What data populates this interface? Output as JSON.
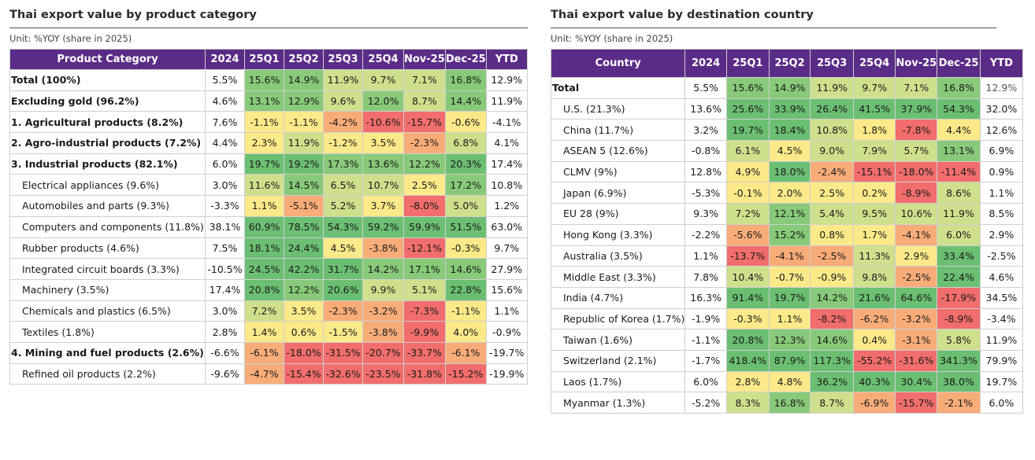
{
  "left": {
    "title": "Thai export value by product category",
    "unit": "Unit: %YOY (share in 2025)",
    "headers": [
      "Product Category",
      "2024",
      "25Q1",
      "25Q2",
      "25Q3",
      "25Q4",
      "Nov-25",
      "Dec-25",
      "YTD"
    ],
    "rows": [
      {
        "label": "Total (100%)",
        "style": "bold",
        "cells": [
          "5.5%",
          "15.6%",
          "14.9%",
          "11.9%",
          "9.7%",
          "7.1%",
          "16.8%",
          "12.9%"
        ]
      },
      {
        "label": "Excluding gold (96.2%)",
        "style": "bold",
        "cells": [
          "4.6%",
          "13.1%",
          "12.9%",
          "9.6%",
          "12.0%",
          "8.7%",
          "14.4%",
          "11.9%"
        ]
      },
      {
        "label": "1. Agricultural products (8.2%)",
        "style": "bold",
        "cells": [
          "7.6%",
          "-1.1%",
          "-1.1%",
          "-4.2%",
          "-10.6%",
          "-15.7%",
          "-0.6%",
          "-4.1%"
        ]
      },
      {
        "label": "2. Agro-industrial products (7.2%)",
        "style": "bold",
        "cells": [
          "4.4%",
          "2.3%",
          "11.9%",
          "-1.2%",
          "3.5%",
          "-2.3%",
          "6.8%",
          "4.1%"
        ]
      },
      {
        "label": "3. Industrial products (82.1%)",
        "style": "bold",
        "cells": [
          "6.0%",
          "19.7%",
          "19.2%",
          "17.3%",
          "13.6%",
          "12.2%",
          "20.3%",
          "17.4%"
        ]
      },
      {
        "label": "Electrical appliances (9.6%)",
        "style": "sub",
        "cells": [
          "3.0%",
          "11.6%",
          "14.5%",
          "6.5%",
          "10.7%",
          "2.5%",
          "17.2%",
          "10.8%"
        ]
      },
      {
        "label": "Automobiles and parts (9.3%)",
        "style": "sub",
        "cells": [
          "-3.3%",
          "1.1%",
          "-5.1%",
          "5.2%",
          "3.7%",
          "-8.0%",
          "5.0%",
          "1.2%"
        ]
      },
      {
        "label": "Computers and components (11.8%)",
        "style": "sub",
        "cells": [
          "38.1%",
          "60.9%",
          "78.5%",
          "54.3%",
          "59.2%",
          "59.9%",
          "51.5%",
          "63.0%"
        ]
      },
      {
        "label": "Rubber products (4.6%)",
        "style": "sub",
        "cells": [
          "7.5%",
          "18.1%",
          "24.4%",
          "4.5%",
          "-3.8%",
          "-12.1%",
          "-0.3%",
          "9.7%"
        ]
      },
      {
        "label": "Integrated circuit boards (3.3%)",
        "style": "sub",
        "cells": [
          "-10.5%",
          "24.5%",
          "42.2%",
          "31.7%",
          "14.2%",
          "17.1%",
          "14.6%",
          "27.9%"
        ]
      },
      {
        "label": "Machinery (3.5%)",
        "style": "sub",
        "cells": [
          "17.4%",
          "20.8%",
          "12.2%",
          "20.6%",
          "9.9%",
          "5.1%",
          "22.8%",
          "15.6%"
        ]
      },
      {
        "label": "Chemicals and plastics (6.5%)",
        "style": "sub",
        "cells": [
          "3.0%",
          "7.2%",
          "3.5%",
          "-2.3%",
          "-3.2%",
          "-7.3%",
          "-1.1%",
          "1.1%"
        ]
      },
      {
        "label": "Textiles (1.8%)",
        "style": "sub",
        "cells": [
          "2.8%",
          "1.4%",
          "0.6%",
          "-1.5%",
          "-3.8%",
          "-9.9%",
          "4.0%",
          "-0.9%"
        ]
      },
      {
        "label": "4. Mining and fuel products (2.6%)",
        "style": "bold",
        "cells": [
          "-6.6%",
          "-6.1%",
          "-18.0%",
          "-31.5%",
          "-20.7%",
          "-33.7%",
          "-6.1%",
          "-19.7%"
        ]
      },
      {
        "label": "Refined oil products (2.2%)",
        "style": "sub",
        "cells": [
          "-9.6%",
          "-4.7%",
          "-15.4%",
          "-32.6%",
          "-23.5%",
          "-31.8%",
          "-15.2%",
          "-19.9%"
        ]
      }
    ]
  },
  "right": {
    "title": "Thai export value by destination country",
    "unit": "Unit: %YOY (share in 2025)",
    "headers": [
      "Country",
      "2024",
      "25Q1",
      "25Q2",
      "25Q3",
      "25Q4",
      "Nov-25",
      "Dec-25",
      "YTD"
    ],
    "rows": [
      {
        "label": "Total",
        "style": "bold",
        "cells": [
          "5.5%",
          "15.6%",
          "14.9%",
          "11.9%",
          "9.7%",
          "7.1%",
          "16.8%",
          "12.9%"
        ]
      },
      {
        "label": "U.S. (21.3%)",
        "style": "sub",
        "cells": [
          "13.6%",
          "25.6%",
          "33.9%",
          "26.4%",
          "41.5%",
          "37.9%",
          "54.3%",
          "32.0%"
        ]
      },
      {
        "label": "China (11.7%)",
        "style": "sub",
        "cells": [
          "3.2%",
          "19.7%",
          "18.4%",
          "10.8%",
          "1.8%",
          "-7.8%",
          "4.4%",
          "12.6%"
        ]
      },
      {
        "label": "ASEAN 5 (12.6%)",
        "style": "sub",
        "cells": [
          "-0.8%",
          "6.1%",
          "4.5%",
          "9.0%",
          "7.9%",
          "5.7%",
          "13.1%",
          "6.9%"
        ]
      },
      {
        "label": "CLMV (9%)",
        "style": "sub",
        "cells": [
          "12.8%",
          "4.9%",
          "18.0%",
          "-2.4%",
          "-15.1%",
          "-18.0%",
          "-11.4%",
          "0.9%"
        ]
      },
      {
        "label": "Japan (6.9%)",
        "style": "sub",
        "cells": [
          "-5.3%",
          "-0.1%",
          "2.0%",
          "2.5%",
          "0.2%",
          "-8.9%",
          "8.6%",
          "1.1%"
        ]
      },
      {
        "label": "EU 28 (9%)",
        "style": "sub",
        "cells": [
          "9.3%",
          "7.2%",
          "12.1%",
          "5.4%",
          "9.5%",
          "10.6%",
          "11.9%",
          "8.5%"
        ]
      },
      {
        "label": "Hong Kong (3.3%)",
        "style": "sub",
        "cells": [
          "-2.2%",
          "-5.6%",
          "15.2%",
          "0.8%",
          "1.7%",
          "-4.1%",
          "6.0%",
          "2.9%"
        ]
      },
      {
        "label": "Australia (3.5%)",
        "style": "sub",
        "cells": [
          "1.1%",
          "-13.7%",
          "-4.1%",
          "-2.5%",
          "11.3%",
          "2.9%",
          "33.4%",
          "-2.5%"
        ]
      },
      {
        "label": "Middle East (3.3%)",
        "style": "sub",
        "cells": [
          "7.8%",
          "10.4%",
          "-0.7%",
          "-0.9%",
          "9.8%",
          "-2.5%",
          "22.4%",
          "4.6%"
        ]
      },
      {
        "label": "India (4.7%)",
        "style": "sub",
        "cells": [
          "16.3%",
          "91.4%",
          "19.7%",
          "14.2%",
          "21.6%",
          "64.6%",
          "-17.9%",
          "34.5%"
        ]
      },
      {
        "label": "Republic of Korea (1.7%)",
        "style": "sub",
        "cells": [
          "-1.9%",
          "-0.3%",
          "1.1%",
          "-8.2%",
          "-6.2%",
          "-3.2%",
          "-8.9%",
          "-3.4%"
        ]
      },
      {
        "label": "Taiwan (1.6%)",
        "style": "sub",
        "cells": [
          "-1.1%",
          "20.8%",
          "12.3%",
          "14.6%",
          "0.4%",
          "-3.1%",
          "5.8%",
          "11.9%"
        ]
      },
      {
        "label": "Switzerland (2.1%)",
        "style": "sub",
        "cells": [
          "-1.7%",
          "418.4%",
          "87.9%",
          "117.3%",
          "-55.2%",
          "-31.6%",
          "341.3%",
          "79.9%"
        ]
      },
      {
        "label": "Laos (1.7%)",
        "style": "sub",
        "cells": [
          "6.0%",
          "2.8%",
          "4.8%",
          "36.2%",
          "40.3%",
          "30.4%",
          "38.0%",
          "19.7%"
        ]
      },
      {
        "label": "Myanmar (1.3%)",
        "style": "sub",
        "cells": [
          "-5.2%",
          "8.3%",
          "16.8%",
          "8.7%",
          "-6.9%",
          "-15.7%",
          "-2.1%",
          "6.0%"
        ]
      }
    ]
  },
  "colors": {
    "header_bg": "#5b2c87",
    "heat_red": "#f26d6d",
    "heat_orange": "#f8ad79",
    "heat_yellow": "#fbe98a",
    "heat_lightgreen": "#cfe08c",
    "heat_green": "#89c97a",
    "heat_darkgreen": "#6bbf73"
  }
}
